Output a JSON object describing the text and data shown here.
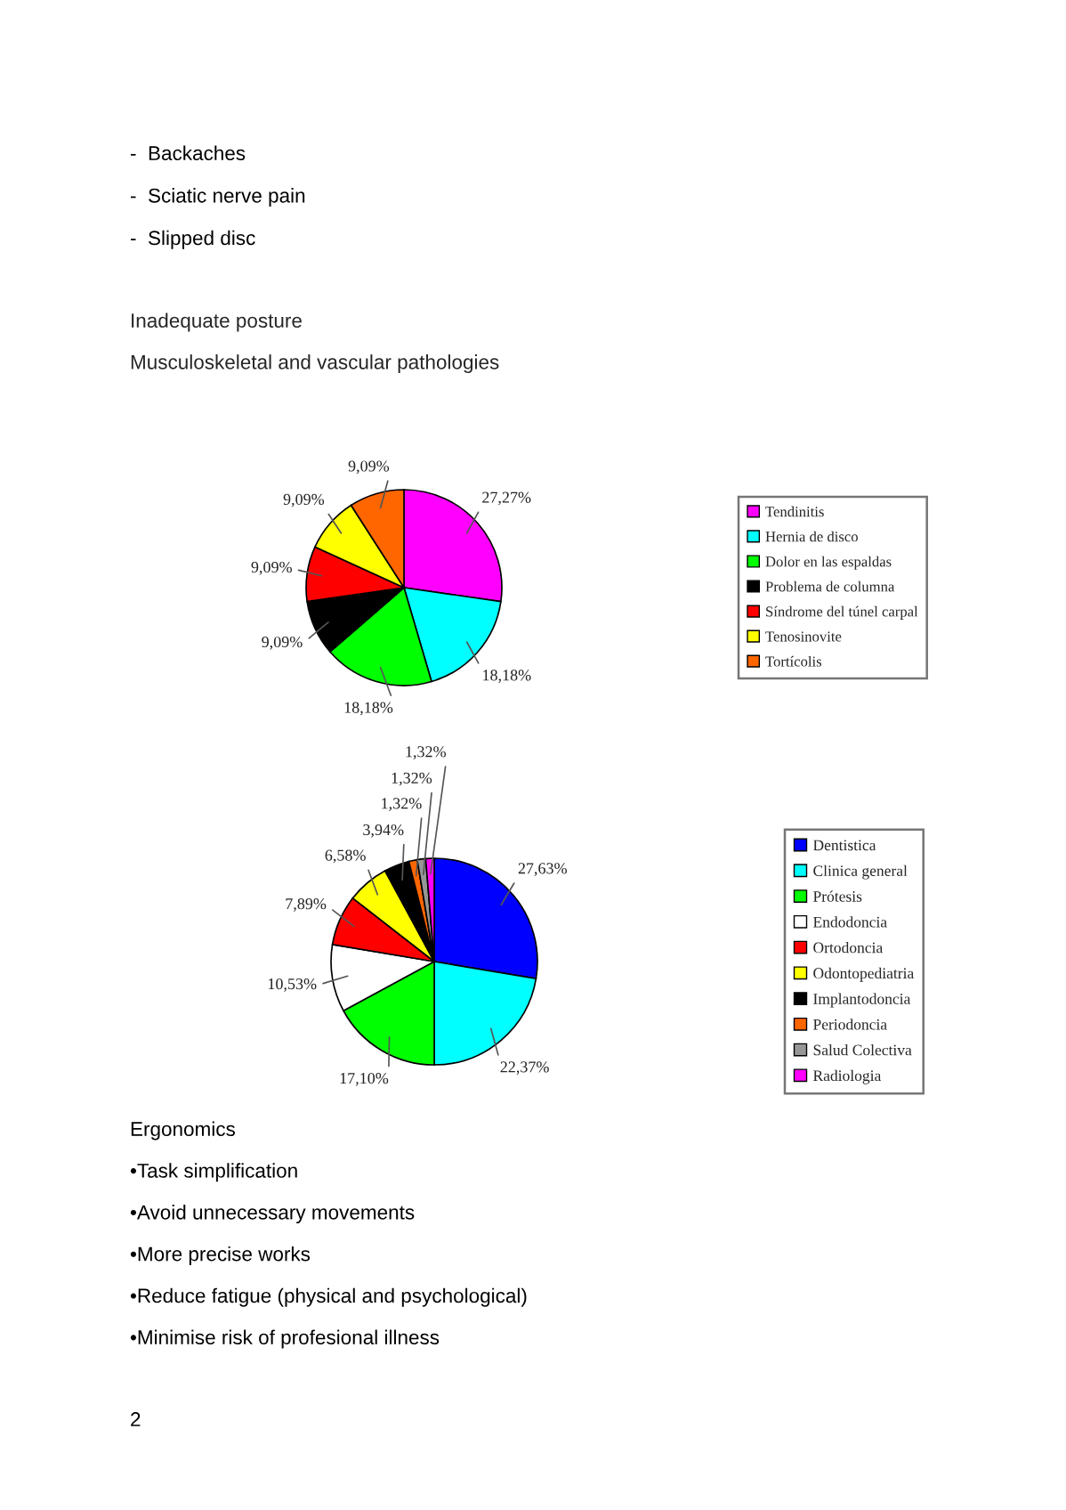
{
  "chart_data": [
    {
      "type": "other",
      "annotations": [
        "-  Backaches",
        "-  Sciatic nerve pain",
        "-  Slipped disc"
      ]
    },
    {
      "type": "pie",
      "title": "Inadequate posture",
      "subtitle": "Musculoskeletal and vascular pathologies",
      "categories": [
        "Tendinitis",
        "Hernia de disco",
        "Dolor en las espaldas",
        "Problema de columna",
        "Síndrome del túnel carpal",
        "Tenosinovite",
        "Tortícolis"
      ],
      "values": [
        27.27,
        18.18,
        18.18,
        9.09,
        9.09,
        9.09,
        9.09
      ],
      "colors": [
        "#ff00ff",
        "#00ffff",
        "#00ff00",
        "#000000",
        "#ff0000",
        "#ffff00",
        "#ff6600"
      ],
      "value_labels": [
        "27,27%",
        "18,18%",
        "18,18%",
        "9,09%",
        "9,09%",
        "9,09%",
        "9,09%"
      ],
      "legend": "right"
    },
    {
      "type": "pie",
      "categories": [
        "Dentistica",
        "Clinica general",
        "Prótesis",
        "Endodoncia",
        "Ortodoncia",
        "Odontopediatria",
        "Implantodoncia",
        "Periodoncia",
        "Salud Colectiva",
        "Radiologia"
      ],
      "values": [
        27.63,
        22.37,
        17.1,
        10.53,
        7.89,
        6.58,
        3.94,
        1.32,
        1.32,
        1.32
      ],
      "colors": [
        "#0000ff",
        "#00ffff",
        "#00ff00",
        "#ffffff",
        "#ff0000",
        "#ffff00",
        "#000000",
        "#ff6600",
        "#969696",
        "#ff00ff"
      ],
      "value_labels": [
        "27,63%",
        "22,37%",
        "17,10%",
        "10,53%",
        "7,89%",
        "6,58%",
        "3,94%",
        "1,32%",
        "1,32%",
        "1,32%"
      ],
      "legend": "right"
    },
    {
      "type": "other",
      "title": "Ergonomics",
      "annotations": [
        "•Task simplification",
        "•Avoid unnecessary movements",
        "•More precise works",
        "•Reduce fatigue (physical and psychological)",
        "•Minimise risk of profesional illness"
      ]
    },
    {
      "type": "other",
      "annotations": [
        "2"
      ]
    }
  ]
}
